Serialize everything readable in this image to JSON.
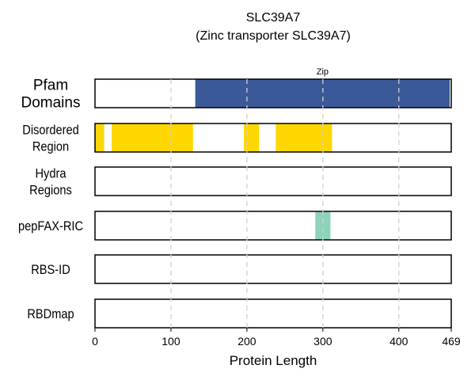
{
  "title": {
    "line1": "SLC39A7",
    "line2": "(Zinc transporter SLC39A7)"
  },
  "chart_data": {
    "type": "bar",
    "orientation": "horizontal-tracks",
    "xlabel": "Protein Length",
    "xlim": [
      0,
      469
    ],
    "xticks": [
      0,
      100,
      200,
      300,
      400,
      469
    ],
    "grid": "dashed vertical",
    "tracks": [
      {
        "key": "pfam",
        "label_lines": [
          "Pfam",
          "Domains"
        ],
        "color": "#3b5998",
        "segments": [
          {
            "start": 132,
            "end": 467,
            "label": "Zip"
          }
        ]
      },
      {
        "key": "disordered",
        "label_lines": [
          "Disordered",
          "Region"
        ],
        "color": "#ffd700",
        "segments": [
          {
            "start": 0,
            "end": 12
          },
          {
            "start": 22,
            "end": 129
          },
          {
            "start": 196,
            "end": 216
          },
          {
            "start": 238,
            "end": 312
          }
        ]
      },
      {
        "key": "hydra",
        "label_lines": [
          "Hydra",
          "Regions"
        ],
        "color": "#8dd3c7",
        "segments": []
      },
      {
        "key": "pepfax",
        "label_lines": [
          "pepFAX-RIC"
        ],
        "color": "#8dd3b9",
        "segments": [
          {
            "start": 290,
            "end": 310
          }
        ]
      },
      {
        "key": "rbsid",
        "label_lines": [
          "RBS-ID"
        ],
        "color": "#8dd3c7",
        "segments": []
      },
      {
        "key": "rbdmap",
        "label_lines": [
          "RBDmap"
        ],
        "color": "#8dd3c7",
        "segments": []
      }
    ]
  }
}
